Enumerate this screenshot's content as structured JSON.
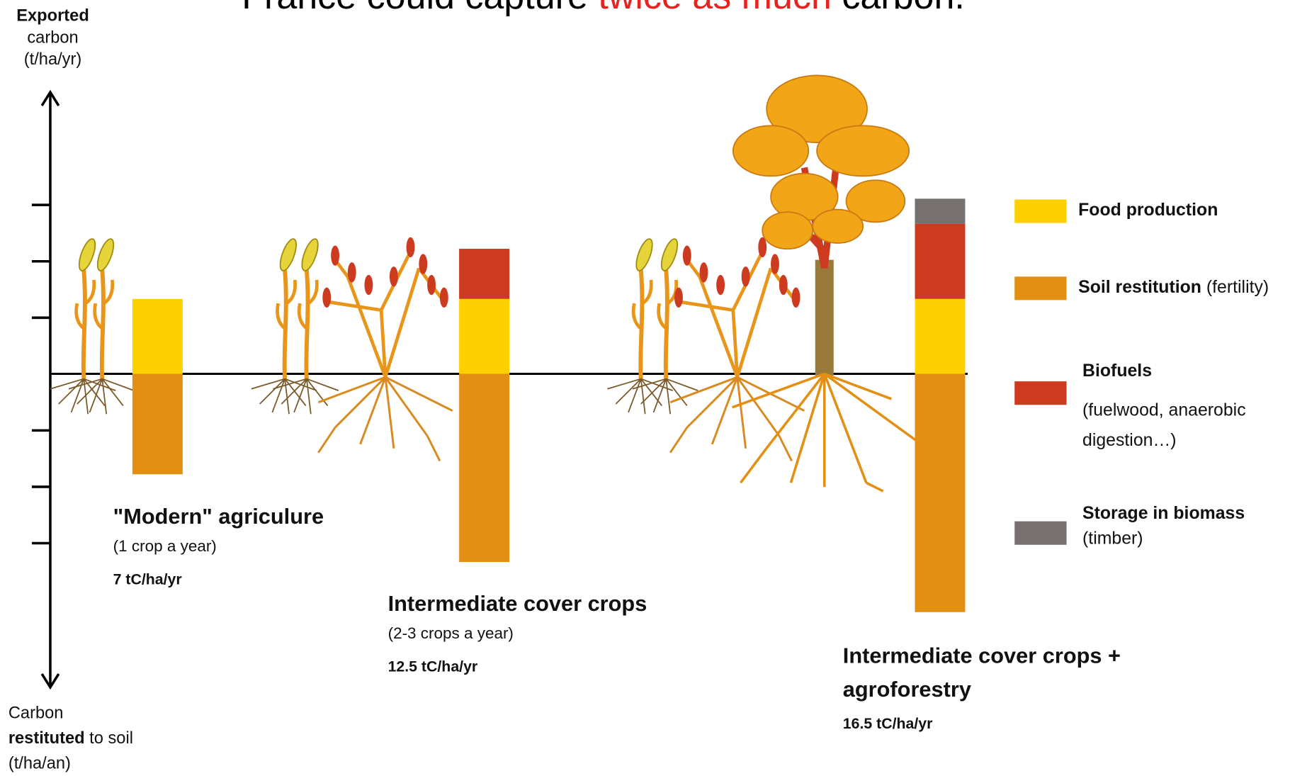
{
  "chart_data": {
    "type": "bar",
    "title": [
      "France could capture ",
      "twice as much",
      " carbon."
    ],
    "title_highlight_color": "#e8231f",
    "y_label_top": [
      "Exported",
      "carbon",
      "(t/ha/yr)"
    ],
    "y_label_bottom": [
      "Carbon",
      "restituted",
      " to soil",
      "(t/ha/an)"
    ],
    "categories": [
      "\"Modern\" agriculure",
      "Intermediate cover crops",
      "Intermediate cover crops + agroforestry"
    ],
    "category_notes": [
      "(1 crop a year)",
      "(2-3 crops a year)",
      null
    ],
    "category_totals": [
      "7 tC/ha/yr",
      "12.5 tC/ha/yr",
      "16.5 tC/ha/yr"
    ],
    "series": [
      {
        "name": "Food production",
        "note": null,
        "color": "#ffd000",
        "values": [
          3,
          3,
          3
        ]
      },
      {
        "name": "Soil restitution",
        "note": "(fertility)",
        "color": "#e38f14",
        "values": [
          -4,
          -7.5,
          -9.5
        ]
      },
      {
        "name": "Biofuels",
        "note": "(fuelwood, anaerobic digestion…)",
        "color": "#cc3a1f",
        "values": [
          null,
          2,
          3
        ]
      },
      {
        "name": "Storage in biomass",
        "note": "(timber)",
        "color": "#767070",
        "values": [
          null,
          null,
          1
        ]
      }
    ],
    "ylim": [
      -12.5,
      11.25
    ],
    "yticks": [
      -6.75,
      -4.5,
      -2.25,
      2.25,
      4.5,
      6.75
    ]
  }
}
